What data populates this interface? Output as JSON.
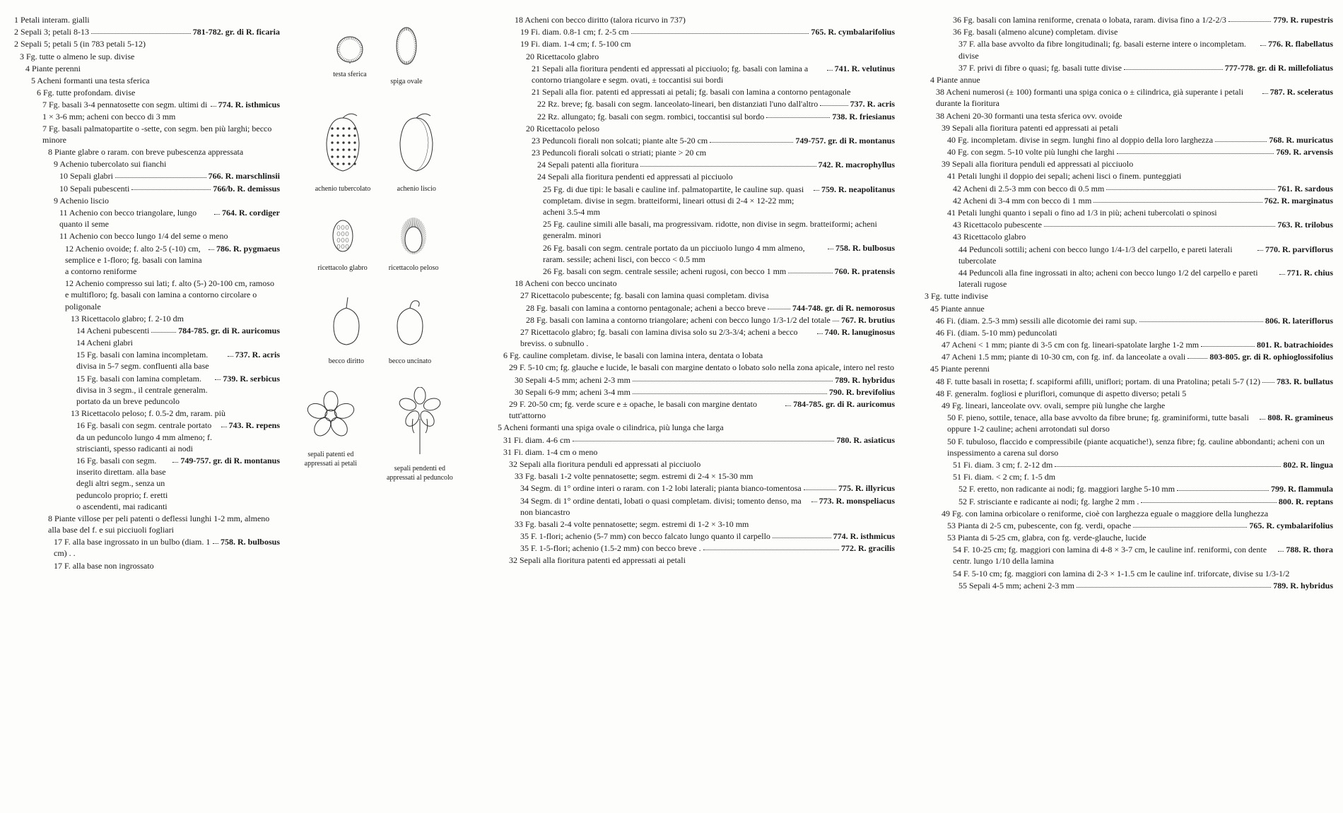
{
  "col1": [
    {
      "indent": 1,
      "text": "1 Petali interam. gialli"
    },
    {
      "indent": 1,
      "text": "2 Sepali 3; petali 8-13",
      "species": "781-782. gr. di R. ficaria"
    },
    {
      "indent": 1,
      "text": "2 Sepali 5; petali 5 (in 783 petali 5-12)"
    },
    {
      "indent": 2,
      "text": "3 Fg. tutte o almeno le sup. divise"
    },
    {
      "indent": 3,
      "text": "4 Piante perenni"
    },
    {
      "indent": 4,
      "text": "5 Acheni formanti una testa sferica"
    },
    {
      "indent": 5,
      "text": "6 Fg. tutte profondam. divise"
    },
    {
      "indent": 6,
      "text": "7 Fg. basali 3-4 pennatosette con segm. ultimi di 1 × 3-6 mm; acheni con becco di 3 mm",
      "species": "774. R. isthmicus"
    },
    {
      "indent": 6,
      "text": "7 Fg. basali palmatopartite o -sette, con segm. ben più larghi; becco minore"
    },
    {
      "indent": 7,
      "text": "8 Piante glabre o raram. con breve pubescenza appressata"
    },
    {
      "indent": 8,
      "text": "9 Achenio tubercolato sui fianchi"
    },
    {
      "indent": 9,
      "text": "10 Sepali glabri",
      "species": "766. R. marschlinsii"
    },
    {
      "indent": 9,
      "text": "10 Sepali pubescenti",
      "species": "766/b. R. demissus"
    },
    {
      "indent": 8,
      "text": "9 Achenio liscio"
    },
    {
      "indent": 9,
      "text": "11 Achenio con becco triangolare, lungo quanto il seme",
      "species": "764. R. cordiger"
    },
    {
      "indent": 9,
      "text": "11 Achenio con becco lungo 1/4 del seme o meno"
    },
    {
      "indent": 10,
      "text": "12 Achenio ovoide; f. alto 2-5 (-10) cm, semplice e 1-floro; fg. basali con lamina a contorno reniforme",
      "species": "786. R. pygmaeus"
    },
    {
      "indent": 10,
      "text": "12 Achenio compresso sui lati; f. alto (5-) 20-100 cm, ramoso e multifloro; fg. basali con lamina a contorno circolare o poligonale"
    },
    {
      "indent": 11,
      "text": "13 Ricettacolo glabro; f. 2-10 dm"
    },
    {
      "indent": 12,
      "text": "14 Acheni pubescenti",
      "species": "784-785. gr. di R. auricomus"
    },
    {
      "indent": 12,
      "text": "14 Acheni glabri"
    },
    {
      "indent": 12,
      "text": "15 Fg. basali con lamina incompletam. divisa in 5-7 segm. confluenti alla base",
      "species": "737. R. acris"
    },
    {
      "indent": 12,
      "text": "15 Fg. basali con lamina completam. divisa in 3 segm., il centrale generalm. portato da un breve peduncolo",
      "species": "739. R. serbicus"
    },
    {
      "indent": 11,
      "text": "13 Ricettacolo peloso; f. 0.5-2 dm, raram. più"
    },
    {
      "indent": 12,
      "text": "16 Fg. basali con segm. centrale portato da un peduncolo lungo 4 mm almeno; f. striscianti, spesso radicanti ai nodi",
      "species": "743. R. repens"
    },
    {
      "indent": 12,
      "text": "16 Fg. basali con segm. inserito direttam. alla base degli altri segm., senza un peduncolo proprio; f. eretti o ascendenti, mai radicanti",
      "species": "749-757. gr. di R. montanus"
    },
    {
      "indent": 7,
      "text": "8 Piante villose per peli patenti o deflessi lunghi 1-2 mm, almeno alla base del f. e sui picciuoli fogliari"
    },
    {
      "indent": 8,
      "text": "17 F. alla base ingrossato in un bulbo (diam. 1 cm) . .",
      "species": "758. R. bulbosus"
    },
    {
      "indent": 8,
      "text": "17 F. alla base non ingrossato"
    }
  ],
  "illus": [
    [
      {
        "cap": "testa sferica",
        "svg": "head"
      },
      {
        "cap": "spiga ovale",
        "svg": "spike"
      }
    ],
    [
      {
        "cap": "achenio tubercolato",
        "svg": "ach-tub"
      },
      {
        "cap": "achenio liscio",
        "svg": "ach-smooth"
      }
    ],
    [
      {
        "cap": "ricettacolo glabro",
        "svg": "rec-g"
      },
      {
        "cap": "ricettacolo peloso",
        "svg": "rec-p"
      }
    ],
    [
      {
        "cap": "becco diritto",
        "svg": "beak-s"
      },
      {
        "cap": "becco uncinato",
        "svg": "beak-h"
      }
    ],
    [
      {
        "cap": "sepali patenti ed appressati ai petali",
        "svg": "flower-open"
      },
      {
        "cap": "sepali pendenti ed appressati al peduncolo",
        "svg": "flower-pend"
      }
    ]
  ],
  "col3": [
    {
      "indent": 7,
      "text": "18 Acheni con becco diritto (talora ricurvo in 737)"
    },
    {
      "indent": 8,
      "text": "19 Fi. diam. 0.8-1 cm; f. 2-5 cm",
      "species": "765. R. cymbalarifolius"
    },
    {
      "indent": 8,
      "text": "19 Fi. diam. 1-4 cm; f. 5-100 cm"
    },
    {
      "indent": 9,
      "text": "20 Ricettacolo glabro"
    },
    {
      "indent": 10,
      "text": "21 Sepali alla fioritura pendenti ed appressati al picciuolo; fg. basali con lamina a contorno triangolare e segm. ovati, ± toccantisi sui bordi",
      "species": "741. R. velutinus"
    },
    {
      "indent": 10,
      "text": "21 Sepali alla fior. patenti ed appressati ai petali; fg. basali con lamina a contorno pentagonale"
    },
    {
      "indent": 11,
      "text": "22 Rz. breve; fg. basali con segm. lanceolato-lineari, ben distanziati l'uno dall'altro",
      "species": "737. R. acris"
    },
    {
      "indent": 11,
      "text": "22 Rz. allungato; fg. basali con segm. rombici, toccantisi sul bordo",
      "species": "738. R. friesianus"
    },
    {
      "indent": 9,
      "text": "20 Ricettacolo peloso"
    },
    {
      "indent": 10,
      "text": "23 Peduncoli fiorali non solcati; piante alte 5-20 cm",
      "species": "749-757. gr. di R. montanus"
    },
    {
      "indent": 10,
      "text": "23 Peduncoli fiorali solcati o striati; piante > 20 cm"
    },
    {
      "indent": 11,
      "text": "24 Sepali patenti alla fioritura",
      "species": "742. R. macrophyllus"
    },
    {
      "indent": 11,
      "text": "24 Sepali alla fioritura pendenti ed appressati al picciuolo"
    },
    {
      "indent": 12,
      "text": "25 Fg. di due tipi: le basali e cauline inf. palmatopartite, le cauline sup. quasi completam. divise in segm. bratteiformi, lineari ottusi di 2-4 × 12-22 mm; acheni 3.5-4 mm",
      "species": "759. R. neapolitanus"
    },
    {
      "indent": 12,
      "text": "25 Fg. cauline simili alle basali, ma progressivam. ridotte, non divise in segm. bratteiformi; acheni generalm. minori"
    },
    {
      "indent": 12,
      "text": "26 Fg. basali con segm. centrale portato da un picciuolo lungo 4 mm almeno, raram. sessile; acheni lisci, con becco < 0.5 mm",
      "species": "758. R. bulbosus"
    },
    {
      "indent": 12,
      "text": "26 Fg. basali con segm. centrale sessile; acheni rugosi, con becco 1 mm",
      "species": "760. R. pratensis"
    },
    {
      "indent": 7,
      "text": "18 Acheni con becco uncinato"
    },
    {
      "indent": 8,
      "text": "27 Ricettacolo pubescente; fg. basali con lamina quasi completam. divisa"
    },
    {
      "indent": 9,
      "text": "28 Fg. basali con lamina a contorno pentagonale; acheni a becco breve",
      "species": "744-748. gr. di R. nemorosus"
    },
    {
      "indent": 9,
      "text": "28 Fg. basali con lamina a contorno triangolare; acheni con becco lungo 1/3-1/2 del totale",
      "species": "767. R. brutius"
    },
    {
      "indent": 8,
      "text": "27 Ricettacolo glabro; fg. basali con lamina divisa solo su 2/3-3/4; acheni a becco breviss. o subnullo .",
      "species": "740. R. lanuginosus"
    },
    {
      "indent": 5,
      "text": "6 Fg. cauline completam. divise, le basali con lamina intera, dentata o lobata"
    },
    {
      "indent": 6,
      "text": "29 F. 5-10 cm; fg. glauche e lucide, le basali con margine dentato o lobato solo nella zona apicale, intero nel resto"
    },
    {
      "indent": 7,
      "text": "30 Sepali 4-5 mm; acheni 2-3 mm",
      "species": "789. R. hybridus"
    },
    {
      "indent": 7,
      "text": "30 Sepali 6-9 mm; acheni 3-4 mm",
      "species": "790. R. brevifolius"
    },
    {
      "indent": 6,
      "text": "29 F. 20-50 cm; fg. verde scure e ± opache, le basali con margine dentato tutt'attorno",
      "species": "784-785. gr. di R. auricomus"
    },
    {
      "indent": 4,
      "text": "5 Acheni formanti una spiga ovale o cilindrica, più lunga che larga"
    },
    {
      "indent": 5,
      "text": "31 Fi. diam. 4-6 cm",
      "species": "780. R. asiaticus"
    },
    {
      "indent": 5,
      "text": "31 Fi. diam. 1-4 cm o meno"
    },
    {
      "indent": 6,
      "text": "32 Sepali alla fioritura penduli ed appressati al picciuolo"
    },
    {
      "indent": 7,
      "text": "33 Fg. basali 1-2 volte pennatosette; segm. estremi di 2-4 × 15-30 mm"
    },
    {
      "indent": 8,
      "text": "34 Segm. di 1° ordine interi o raram. con 1-2 lobi laterali; pianta bianco-tomentosa",
      "species": "775. R. illyricus"
    },
    {
      "indent": 8,
      "text": "34 Segm. di 1° ordine dentati, lobati o quasi completam. divisi; tomento denso, ma non biancastro",
      "species": "773. R. monspeliacus"
    },
    {
      "indent": 7,
      "text": "33 Fg. basali 2-4 volte pennatosette; segm. estremi di 1-2 × 3-10 mm"
    },
    {
      "indent": 8,
      "text": "35 F. 1-flori; achenio (5-7 mm) con becco falcato lungo quanto il carpello",
      "species": "774. R. isthmicus"
    },
    {
      "indent": 8,
      "text": "35 F. 1-5-flori; achenio (1.5-2 mm) con becco breve .",
      "species": "772. R. gracilis"
    },
    {
      "indent": 6,
      "text": "32 Sepali alla fioritura patenti ed appressati ai petali"
    }
  ],
  "col4": [
    {
      "indent": 7,
      "text": "36 Fg. basali con lamina reniforme, crenata o lobata, raram. divisa fino a 1/2-2/3",
      "species": "779. R. rupestris"
    },
    {
      "indent": 7,
      "text": "36 Fg. basali (almeno alcune) completam. divise"
    },
    {
      "indent": 8,
      "text": "37 F. alla base avvolto da fibre longitudinali; fg. basali esterne intere o incompletam. divise",
      "species": "776. R. flabellatus"
    },
    {
      "indent": 8,
      "text": "37 F. privi di fibre o quasi; fg. basali tutte divise",
      "species": "777-778. gr. di R. millefoliatus"
    },
    {
      "indent": 3,
      "text": "4 Piante annue"
    },
    {
      "indent": 4,
      "text": "38 Acheni numerosi (± 100) formanti una spiga conica o ± cilindrica, già superante i petali durante la fioritura",
      "species": "787. R. sceleratus"
    },
    {
      "indent": 4,
      "text": "38 Acheni 20-30 formanti una testa sferica ovv. ovoide"
    },
    {
      "indent": 5,
      "text": "39 Sepali alla fioritura patenti ed appressati ai petali"
    },
    {
      "indent": 6,
      "text": "40 Fg. incompletam. divise in segm. lunghi fino al doppio della loro larghezza",
      "species": "768. R. muricatus"
    },
    {
      "indent": 6,
      "text": "40 Fg. con segm. 5-10 volte più lunghi che larghi",
      "species": "769. R. arvensis"
    },
    {
      "indent": 5,
      "text": "39 Sepali alla fioritura penduli ed appressati al picciuolo"
    },
    {
      "indent": 6,
      "text": "41 Petali lunghi il doppio dei sepali; acheni lisci o finem. punteggiati"
    },
    {
      "indent": 7,
      "text": "42 Acheni di 2.5-3 mm con becco di 0.5 mm",
      "species": "761. R. sardous"
    },
    {
      "indent": 7,
      "text": "42 Acheni di 3-4 mm con becco di 1 mm",
      "species": "762. R. marginatus"
    },
    {
      "indent": 6,
      "text": "41 Petali lunghi quanto i sepali o fino ad 1/3 in più; acheni tubercolati o spinosi"
    },
    {
      "indent": 7,
      "text": "43 Ricettacolo pubescente",
      "species": "763. R. trilobus"
    },
    {
      "indent": 7,
      "text": "43 Ricettacolo glabro"
    },
    {
      "indent": 8,
      "text": "44 Peduncoli sottili; acheni con becco lungo 1/4-1/3 del carpello, e pareti laterali tubercolate",
      "species": "770. R. parviflorus"
    },
    {
      "indent": 8,
      "text": "44 Peduncoli alla fine ingrossati in alto; acheni con becco lungo 1/2 del carpello e pareti laterali rugose",
      "species": "771. R. chius"
    },
    {
      "indent": 2,
      "text": "3 Fg. tutte indivise"
    },
    {
      "indent": 3,
      "text": "45 Piante annue"
    },
    {
      "indent": 4,
      "text": "46 Fi. (diam. 2.5-3 mm) sessili alle dicotomie dei rami sup.",
      "species": "806. R. lateriflorus"
    },
    {
      "indent": 4,
      "text": "46 Fi. (diam. 5-10 mm) peduncolati"
    },
    {
      "indent": 5,
      "text": "47 Acheni < 1 mm; piante di 3-5 cm con fg. lineari-spatolate larghe 1-2 mm",
      "species": "801. R. batrachioides"
    },
    {
      "indent": 5,
      "text": "47 Acheni 1.5 mm; piante di 10-30 cm, con fg. inf. da lanceolate a ovali",
      "species": "803-805. gr. di R. ophioglossifolius"
    },
    {
      "indent": 3,
      "text": "45 Piante perenni"
    },
    {
      "indent": 4,
      "text": "48 F. tutte basali in rosetta; f. scapiformi afilli, uniflori; portam. di una Pratolina; petali 5-7 (12)",
      "species": "783. R. bullatus"
    },
    {
      "indent": 4,
      "text": "48 F. generalm. fogliosi e pluriflori, comunque di aspetto diverso; petali 5"
    },
    {
      "indent": 5,
      "text": "49 Fg. lineari, lanceolate ovv. ovali, sempre più lunghe che larghe"
    },
    {
      "indent": 6,
      "text": "50 F. pieno, sottile, tenace, alla base avvolto da fibre brune; fg. graminiformi, tutte basali oppure 1-2 cauline; acheni arrotondati sul dorso",
      "species": "808. R. gramineus"
    },
    {
      "indent": 6,
      "text": "50 F. tubuloso, flaccido e compressibile (piante acquatiche!), senza fibre; fg. cauline abbondanti; acheni con un inspessimento a carena sul dorso"
    },
    {
      "indent": 7,
      "text": "51 Fi. diam. 3 cm; f. 2-12 dm",
      "species": "802. R. lingua"
    },
    {
      "indent": 7,
      "text": "51 Fi. diam. < 2 cm; f. 1-5 dm"
    },
    {
      "indent": 8,
      "text": "52 F. eretto, non radicante ai nodi; fg. maggiori larghe 5-10 mm",
      "species": "799. R. flammula"
    },
    {
      "indent": 8,
      "text": "52 F. strisciante e radicante ai nodi; fg. larghe 2 mm .",
      "species": "800. R. reptans"
    },
    {
      "indent": 5,
      "text": "49 Fg. con lamina orbicolare o reniforme, cioè con larghezza eguale o maggiore della lunghezza"
    },
    {
      "indent": 6,
      "text": "53 Pianta di 2-5 cm, pubescente, con fg. verdi, opache",
      "species": "765. R. cymbalarifolius"
    },
    {
      "indent": 6,
      "text": "53 Pianta di 5-25 cm, glabra, con fg. verde-glauche, lucide"
    },
    {
      "indent": 7,
      "text": "54 F. 10-25 cm; fg. maggiori con lamina di 4-8 × 3-7 cm, le cauline inf. reniformi, con dente centr. lungo 1/10 della lamina",
      "species": "788. R. thora"
    },
    {
      "indent": 7,
      "text": "54 F. 5-10 cm; fg. maggiori con lamina di 2-3 × 1-1.5 cm le cauline inf. triforcate, divise su 1/3-1/2"
    },
    {
      "indent": 8,
      "text": "55 Sepali 4-5 mm; acheni 2-3 mm",
      "species": "789. R. hybridus"
    }
  ]
}
